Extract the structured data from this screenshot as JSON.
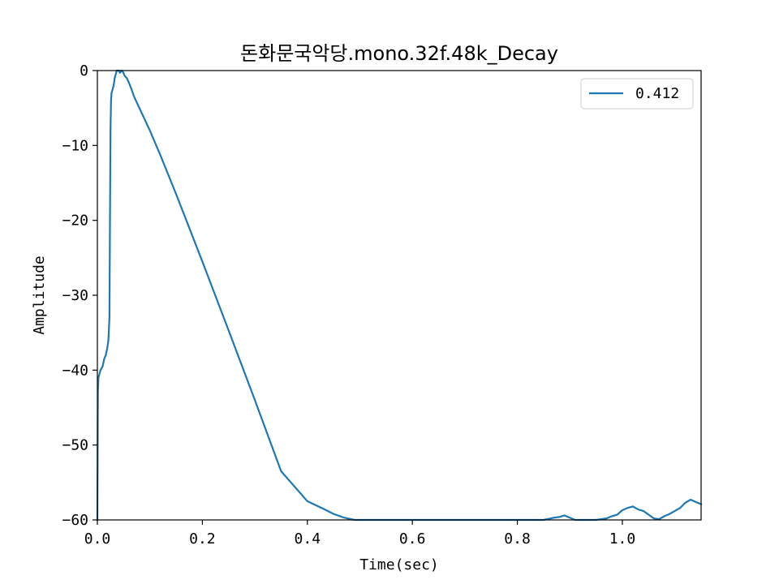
{
  "chart_data": {
    "type": "line",
    "title": "돈화문국악당.mono.32f.48k_Decay",
    "xlabel": "Time(sec)",
    "ylabel": "Amplitude",
    "xlim": [
      0.0,
      1.15
    ],
    "ylim": [
      -60,
      0
    ],
    "xticks": [
      0.0,
      0.2,
      0.4,
      0.6,
      0.8,
      1.0
    ],
    "xtick_labels": [
      "0.0",
      "0.2",
      "0.4",
      "0.6",
      "0.8",
      "1.0"
    ],
    "yticks": [
      0,
      -10,
      -20,
      -30,
      -40,
      -50,
      -60
    ],
    "ytick_labels": [
      "0",
      "−10",
      "−20",
      "−30",
      "−40",
      "−50",
      "−60"
    ],
    "grid": false,
    "legend_position": "top-right",
    "colors": {
      "series": "#1f77b4"
    },
    "series": [
      {
        "name": "0.412",
        "x": [
          0.0,
          0.001,
          0.002,
          0.004,
          0.006,
          0.01,
          0.013,
          0.016,
          0.019,
          0.021,
          0.023,
          0.024,
          0.025,
          0.026,
          0.027,
          0.029,
          0.031,
          0.033,
          0.035,
          0.037,
          0.039,
          0.041,
          0.043,
          0.046,
          0.049,
          0.052,
          0.056,
          0.06,
          0.065,
          0.07,
          0.08,
          0.09,
          0.1,
          0.12,
          0.15,
          0.2,
          0.25,
          0.3,
          0.35,
          0.4,
          0.43,
          0.45,
          0.47,
          0.49,
          0.5,
          0.51,
          0.52,
          0.53,
          0.54,
          0.56,
          0.6,
          0.7,
          0.8,
          0.83,
          0.85,
          0.87,
          0.88,
          0.89,
          0.9,
          0.91,
          0.95,
          0.97,
          0.98,
          0.99,
          1.0,
          1.01,
          1.02,
          1.03,
          1.04,
          1.05,
          1.06,
          1.07,
          1.08,
          1.09,
          1.1,
          1.11,
          1.12,
          1.13,
          1.14,
          1.15
        ],
        "values": [
          -60,
          -43,
          -41,
          -40.5,
          -40,
          -39.5,
          -38.5,
          -38,
          -37,
          -36,
          -33,
          -20,
          -8,
          -4,
          -3,
          -2.5,
          -2,
          -1,
          -0.5,
          0,
          0,
          0,
          -0.3,
          0,
          -0.2,
          -0.7,
          -1,
          -1.6,
          -2.5,
          -3.5,
          -5,
          -6.5,
          -8,
          -11.3,
          -16.5,
          -25.5,
          -34.7,
          -44,
          -53.5,
          -57.5,
          -58.5,
          -59.2,
          -59.7,
          -60,
          -60,
          -60,
          -60,
          -60,
          -60,
          -60,
          -60,
          -60,
          -60,
          -60,
          -60,
          -59.7,
          -59.6,
          -59.4,
          -59.7,
          -60,
          -60,
          -59.8,
          -59.5,
          -59.3,
          -58.7,
          -58.4,
          -58.2,
          -58.6,
          -58.8,
          -59.3,
          -59.8,
          -59.9,
          -59.5,
          -59.2,
          -58.8,
          -58.4,
          -57.7,
          -57.3,
          -57.6,
          -57.9
        ]
      }
    ]
  }
}
